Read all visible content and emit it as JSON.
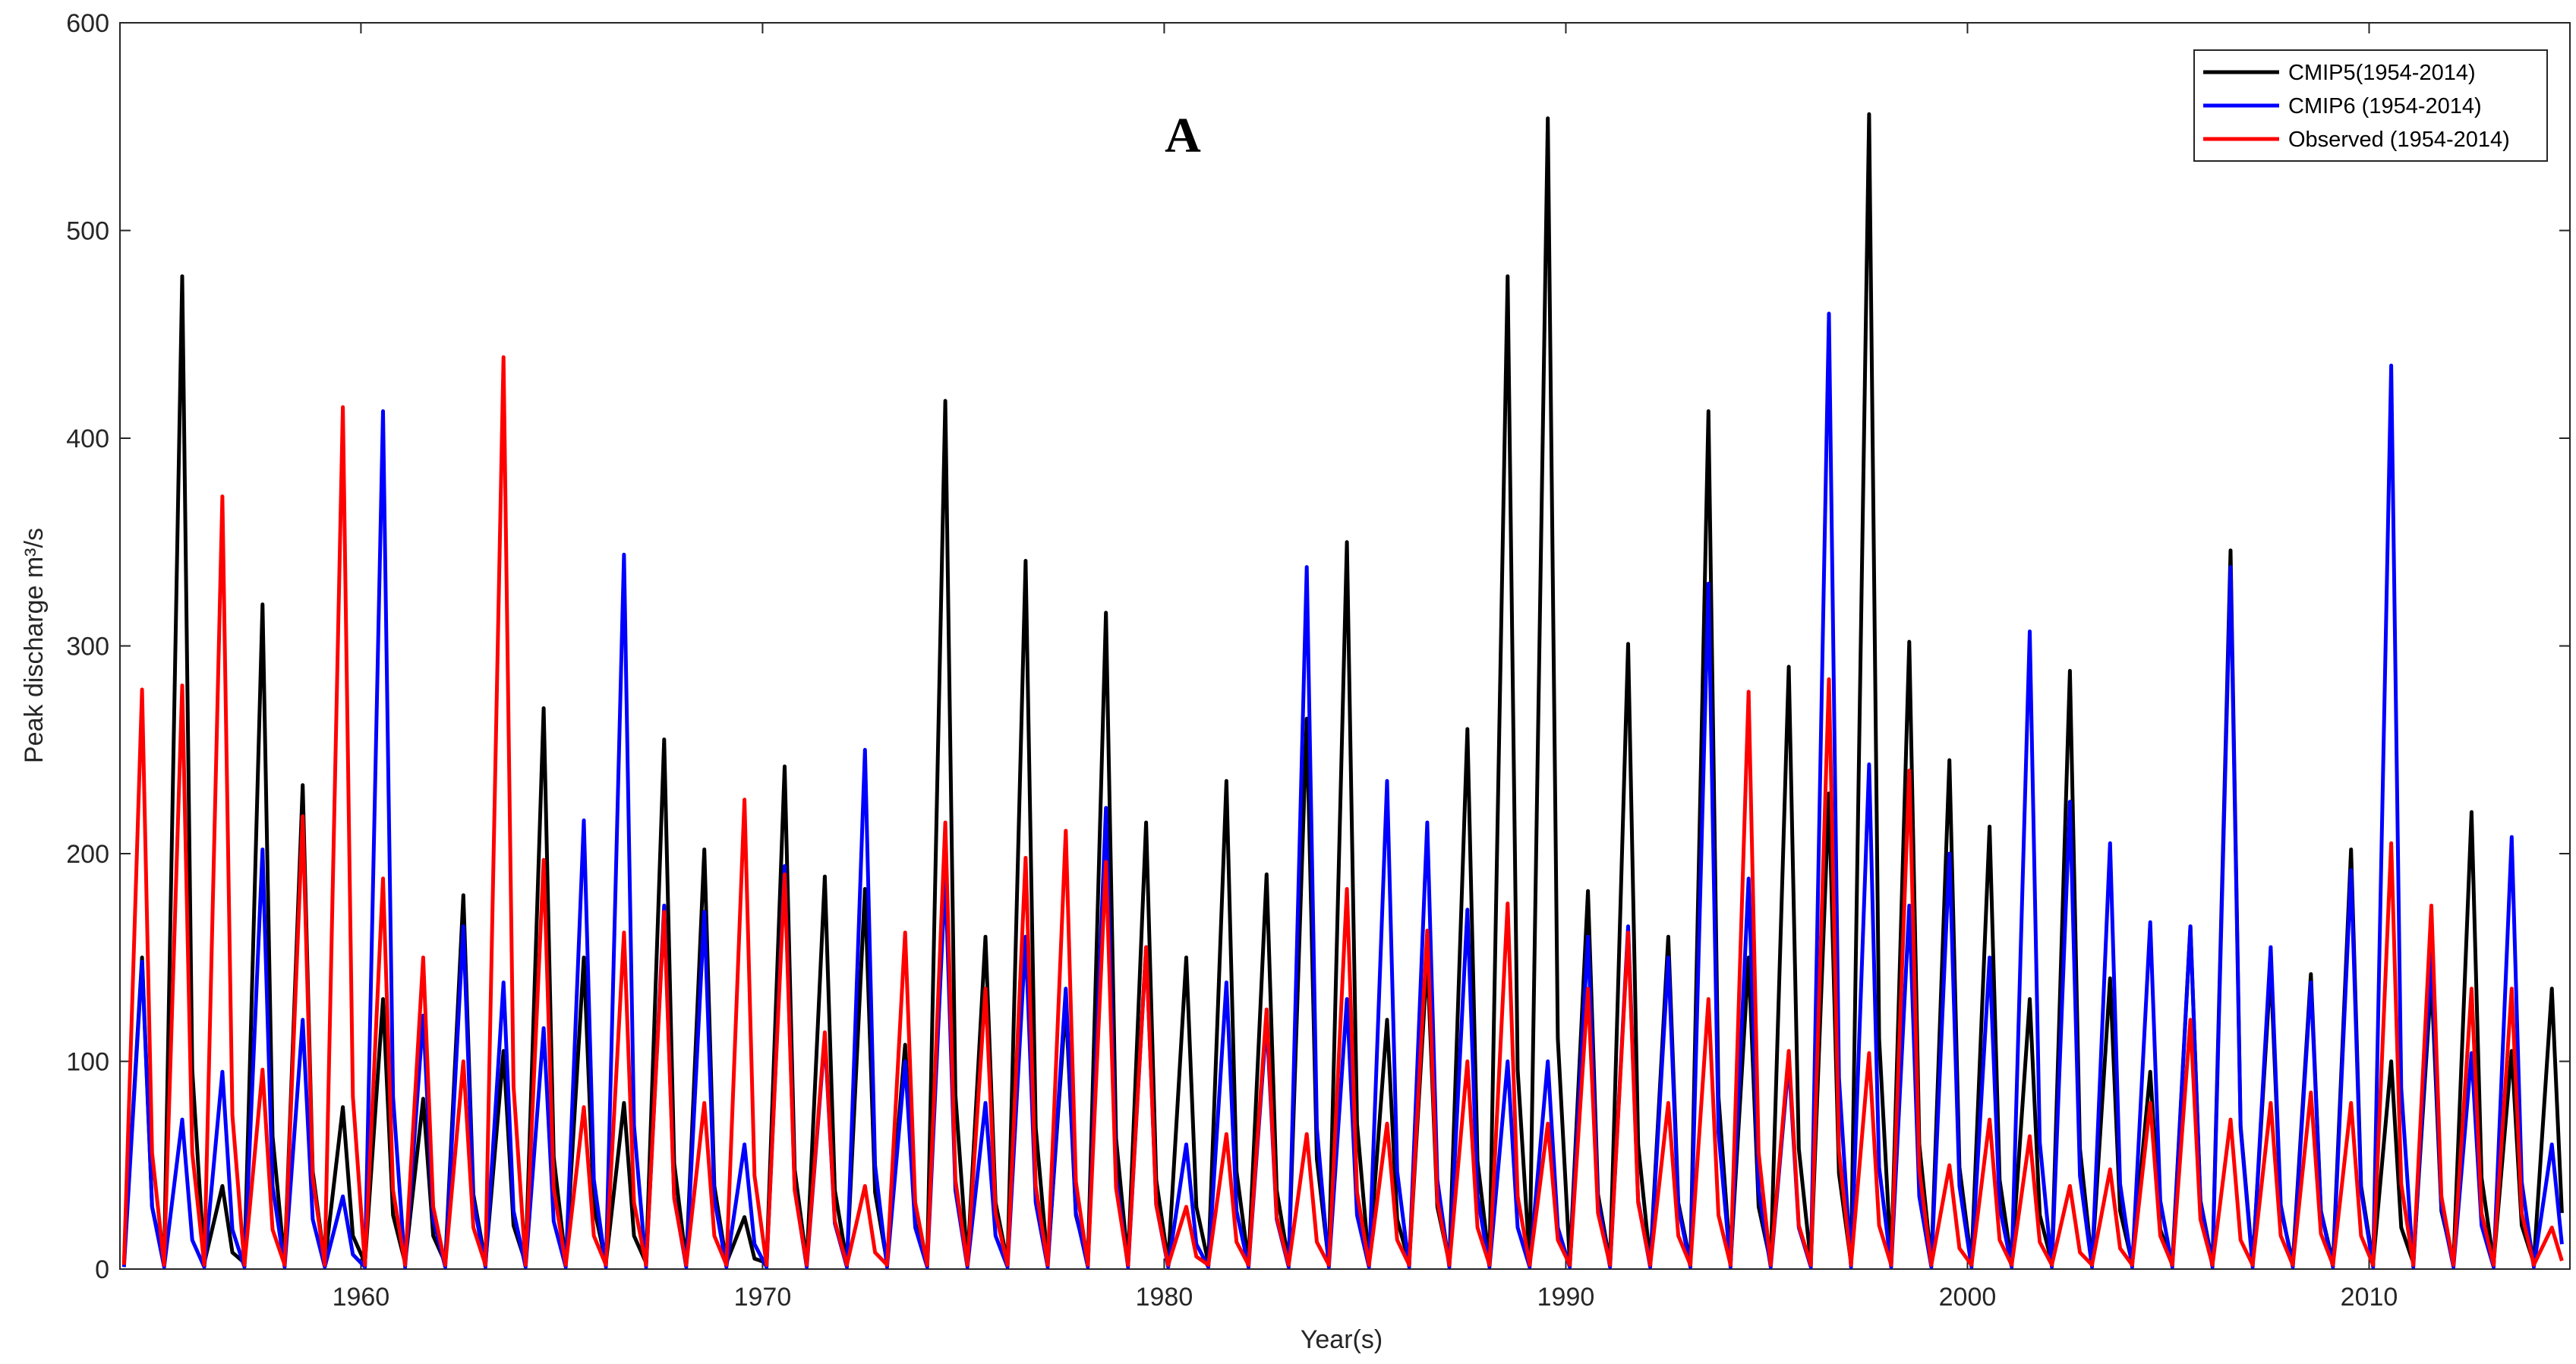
{
  "chart_data": {
    "type": "line",
    "xlabel": "Year(s)",
    "ylabel": "Peak discharge m³/s",
    "annotation": "A",
    "xlim": [
      1954,
      2015
    ],
    "xticks": [
      1960,
      1970,
      1980,
      1990,
      2000,
      2010
    ],
    "ylim": [
      0,
      600
    ],
    "yticks": [
      0,
      100,
      200,
      300,
      400,
      500,
      600
    ],
    "grid": false,
    "legend": "upper right",
    "x": [
      1954.1,
      1954.55,
      1954.8,
      1955.1,
      1955.55,
      1955.8,
      1956.1,
      1956.55,
      1956.8,
      1957.1,
      1957.55,
      1957.8,
      1958.1,
      1958.55,
      1958.8,
      1959.1,
      1959.55,
      1959.8,
      1960.1,
      1960.55,
      1960.8,
      1961.1,
      1961.55,
      1961.8,
      1962.1,
      1962.55,
      1962.8,
      1963.1,
      1963.55,
      1963.8,
      1964.1,
      1964.55,
      1964.8,
      1965.1,
      1965.55,
      1965.8,
      1966.1,
      1966.55,
      1966.8,
      1967.1,
      1967.55,
      1967.8,
      1968.1,
      1968.55,
      1968.8,
      1969.1,
      1969.55,
      1969.8,
      1970.1,
      1970.55,
      1970.8,
      1971.1,
      1971.55,
      1971.8,
      1972.1,
      1972.55,
      1972.8,
      1973.1,
      1973.55,
      1973.8,
      1974.1,
      1974.55,
      1974.8,
      1975.1,
      1975.55,
      1975.8,
      1976.1,
      1976.55,
      1976.8,
      1977.1,
      1977.55,
      1977.8,
      1978.1,
      1978.55,
      1978.8,
      1979.1,
      1979.55,
      1979.8,
      1980.1,
      1980.55,
      1980.8,
      1981.1,
      1981.55,
      1981.8,
      1982.1,
      1982.55,
      1982.8,
      1983.1,
      1983.55,
      1983.8,
      1984.1,
      1984.55,
      1984.8,
      1985.1,
      1985.55,
      1985.8,
      1986.1,
      1986.55,
      1986.8,
      1987.1,
      1987.55,
      1987.8,
      1988.1,
      1988.55,
      1988.8,
      1989.1,
      1989.55,
      1989.8,
      1990.1,
      1990.55,
      1990.8,
      1991.1,
      1991.55,
      1991.8,
      1992.1,
      1992.55,
      1992.8,
      1993.1,
      1993.55,
      1993.8,
      1994.1,
      1994.55,
      1994.8,
      1995.1,
      1995.55,
      1995.8,
      1996.1,
      1996.55,
      1996.8,
      1997.1,
      1997.55,
      1997.8,
      1998.1,
      1998.55,
      1998.8,
      1999.1,
      1999.55,
      1999.8,
      2000.1,
      2000.55,
      2000.8,
      2001.1,
      2001.55,
      2001.8,
      2002.1,
      2002.55,
      2002.8,
      2003.1,
      2003.55,
      2003.8,
      2004.1,
      2004.55,
      2004.8,
      2005.1,
      2005.55,
      2005.8,
      2006.1,
      2006.55,
      2006.8,
      2007.1,
      2007.55,
      2007.8,
      2008.1,
      2008.55,
      2008.8,
      2009.1,
      2009.55,
      2009.8,
      2010.1,
      2010.55,
      2010.8,
      2011.1,
      2011.55,
      2011.8,
      2012.1,
      2012.55,
      2012.8,
      2013.1,
      2013.55,
      2013.8,
      2014.1,
      2014.55,
      2014.8
    ],
    "series": [
      {
        "name": "CMIP5(1954-2014)",
        "color": "#000000",
        "values": [
          3,
          150,
          30,
          3,
          478,
          96,
          3,
          40,
          8,
          3,
          320,
          64,
          3,
          233,
          47,
          3,
          78,
          16,
          3,
          130,
          26,
          3,
          82,
          16,
          3,
          180,
          36,
          3,
          105,
          21,
          3,
          270,
          54,
          3,
          150,
          30,
          3,
          80,
          16,
          3,
          255,
          51,
          3,
          202,
          40,
          3,
          25,
          5,
          3,
          242,
          48,
          3,
          189,
          38,
          3,
          183,
          37,
          3,
          108,
          22,
          3,
          418,
          84,
          3,
          160,
          32,
          3,
          341,
          68,
          3,
          128,
          26,
          3,
          316,
          63,
          3,
          215,
          43,
          3,
          150,
          30,
          3,
          235,
          47,
          3,
          190,
          38,
          3,
          265,
          53,
          3,
          350,
          70,
          3,
          120,
          24,
          3,
          150,
          30,
          3,
          260,
          52,
          3,
          478,
          96,
          3,
          554,
          111,
          3,
          182,
          36,
          3,
          301,
          60,
          3,
          160,
          32,
          3,
          413,
          83,
          3,
          150,
          30,
          3,
          290,
          58,
          3,
          229,
          46,
          3,
          556,
          111,
          3,
          302,
          60,
          3,
          245,
          49,
          3,
          213,
          43,
          3,
          130,
          26,
          3,
          288,
          58,
          3,
          140,
          28,
          3,
          95,
          19,
          3,
          165,
          33,
          3,
          346,
          69,
          3,
          145,
          29,
          3,
          142,
          28,
          3,
          202,
          40,
          3,
          100,
          20,
          3,
          140,
          28,
          3,
          220,
          44,
          3,
          105,
          21,
          3,
          135,
          27
        ]
      },
      {
        "name": "CMIP6 (1954-2014)",
        "color": "#0000ff",
        "values": [
          1,
          148,
          30,
          1,
          72,
          14,
          1,
          95,
          19,
          1,
          202,
          40,
          1,
          120,
          24,
          1,
          35,
          7,
          1,
          413,
          83,
          1,
          122,
          24,
          1,
          165,
          33,
          1,
          138,
          28,
          1,
          116,
          23,
          1,
          216,
          43,
          1,
          344,
          69,
          1,
          175,
          35,
          1,
          172,
          34,
          1,
          60,
          12,
          1,
          194,
          39,
          1,
          112,
          22,
          1,
          250,
          50,
          1,
          100,
          20,
          1,
          190,
          38,
          1,
          80,
          16,
          1,
          160,
          32,
          1,
          135,
          27,
          1,
          222,
          44,
          1,
          155,
          31,
          1,
          60,
          12,
          1,
          138,
          28,
          1,
          120,
          24,
          1,
          338,
          68,
          1,
          130,
          26,
          1,
          235,
          47,
          1,
          215,
          43,
          1,
          173,
          35,
          1,
          100,
          20,
          1,
          100,
          20,
          1,
          160,
          32,
          1,
          165,
          33,
          1,
          150,
          30,
          1,
          330,
          66,
          1,
          188,
          38,
          1,
          100,
          20,
          1,
          460,
          92,
          1,
          243,
          49,
          1,
          175,
          35,
          1,
          200,
          40,
          1,
          150,
          30,
          1,
          307,
          61,
          1,
          225,
          45,
          1,
          205,
          41,
          1,
          167,
          33,
          1,
          165,
          33,
          1,
          338,
          68,
          1,
          155,
          31,
          1,
          138,
          28,
          1,
          192,
          38,
          1,
          435,
          87,
          1,
          152,
          30,
          1,
          104,
          21,
          1,
          208,
          42,
          1,
          60,
          12
        ]
      },
      {
        "name": "Observed (1954-2014)",
        "color": "#ff0000",
        "values": [
          2,
          279,
          56,
          2,
          281,
          56,
          2,
          372,
          74,
          2,
          96,
          19,
          2,
          218,
          44,
          2,
          415,
          83,
          2,
          188,
          38,
          2,
          150,
          30,
          2,
          100,
          20,
          2,
          439,
          88,
          2,
          197,
          39,
          2,
          78,
          16,
          2,
          162,
          32,
          2,
          172,
          34,
          2,
          80,
          16,
          2,
          226,
          45,
          2,
          190,
          38,
          2,
          114,
          23,
          2,
          40,
          8,
          2,
          162,
          32,
          2,
          215,
          43,
          2,
          135,
          27,
          2,
          198,
          40,
          2,
          211,
          42,
          2,
          196,
          39,
          2,
          155,
          31,
          2,
          30,
          6,
          2,
          65,
          13,
          2,
          125,
          25,
          2,
          65,
          13,
          2,
          183,
          37,
          2,
          70,
          14,
          2,
          163,
          33,
          2,
          100,
          20,
          2,
          176,
          35,
          2,
          70,
          14,
          2,
          135,
          27,
          2,
          162,
          32,
          2,
          80,
          16,
          2,
          130,
          26,
          2,
          278,
          56,
          2,
          105,
          21,
          2,
          284,
          57,
          2,
          104,
          21,
          2,
          240,
          48,
          2,
          50,
          10,
          2,
          72,
          14,
          2,
          64,
          13,
          2,
          40,
          8,
          2,
          48,
          10,
          2,
          80,
          16,
          2,
          120,
          24,
          2,
          72,
          14,
          2,
          80,
          16,
          2,
          85,
          17,
          2,
          80,
          16,
          2,
          205,
          41,
          2,
          175,
          35,
          2,
          135,
          27,
          2,
          135,
          27,
          2,
          20,
          4
        ]
      }
    ]
  }
}
